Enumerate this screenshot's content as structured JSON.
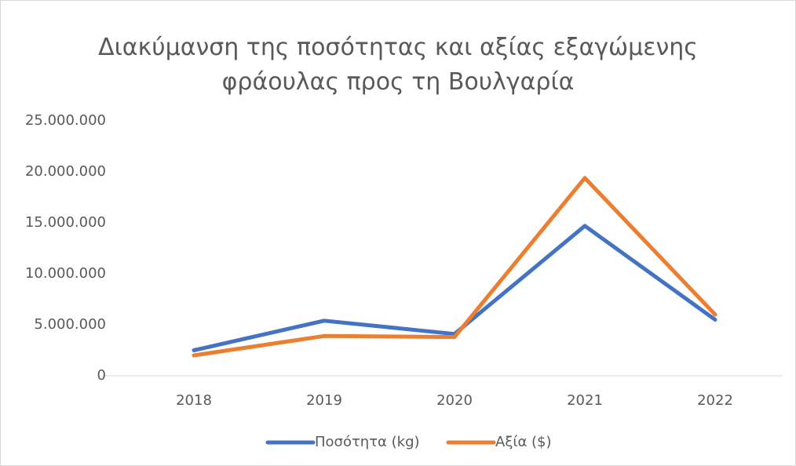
{
  "chart_data": {
    "type": "line",
    "title": "Διακύμανση της ποσότητας και αξίας εξαγώμενης φράουλας προς τη Βουλγαρία",
    "categories": [
      "2018",
      "2019",
      "2020",
      "2021",
      "2022"
    ],
    "series": [
      {
        "name": "Ποσότητα (kg)",
        "color": "#4472c4",
        "values": [
          2500000,
          5400000,
          4100000,
          14700000,
          5500000
        ]
      },
      {
        "name": "Αξία ($)",
        "color": "#ed7d31",
        "values": [
          2000000,
          3900000,
          3800000,
          19400000,
          6000000
        ]
      }
    ],
    "ylim": [
      0,
      25000000
    ],
    "yticks": [
      0,
      {
        "value": 5000000,
        "label": "5.000.000"
      },
      {
        "value": 10000000,
        "label": "10.000.000"
      },
      {
        "value": 15000000,
        "label": "15.000.000"
      },
      {
        "value": 20000000,
        "label": "20.000.000"
      },
      {
        "value": 25000000,
        "label": "25.000.000"
      }
    ],
    "grid": false,
    "legend": "bottom"
  }
}
